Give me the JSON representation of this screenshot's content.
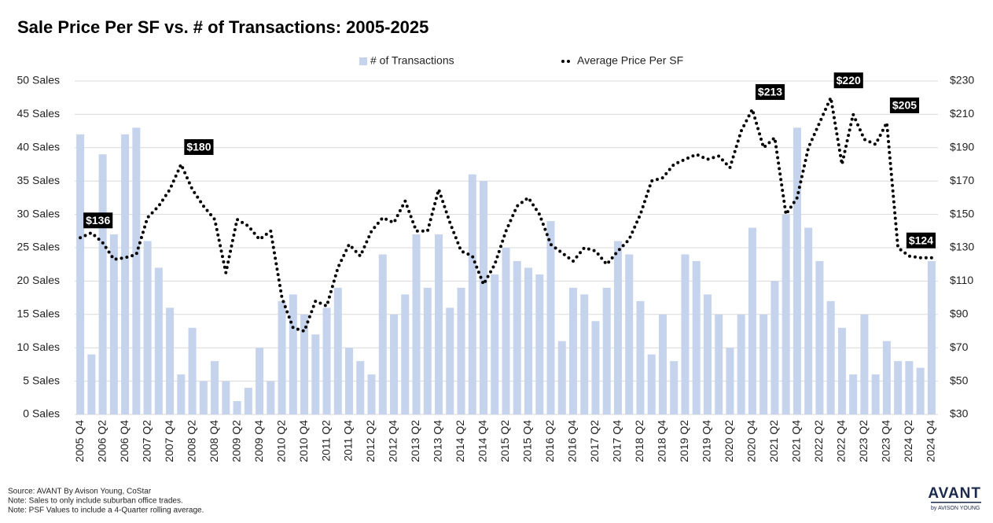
{
  "chart_data": {
    "type": "bar_line",
    "title": "Sale Price Per SF vs. # of Transactions: 2005-2025",
    "categories": [
      "2005 Q4",
      null,
      "2006 Q2",
      null,
      "2006 Q4",
      null,
      "2007 Q2",
      null,
      "2007 Q4",
      null,
      "2008 Q2",
      null,
      "2008 Q4",
      null,
      "2009 Q2",
      null,
      "2009 Q4",
      null,
      "2010 Q2",
      null,
      "2010 Q4",
      null,
      "2011 Q2",
      null,
      "2011 Q4",
      null,
      "2012 Q2",
      null,
      "2012 Q4",
      null,
      "2013 Q2",
      null,
      "2013 Q4",
      null,
      "2014 Q2",
      null,
      "2014 Q4",
      null,
      "2015 Q2",
      null,
      "2015 Q4",
      null,
      "2016 Q2",
      null,
      "2016 Q4",
      null,
      "2017 Q2",
      null,
      "2017 Q4",
      null,
      "2018 Q2",
      null,
      "2018 Q4",
      null,
      "2019 Q2",
      null,
      "2019 Q4",
      null,
      "2020 Q2",
      null,
      "2020 Q4",
      null,
      "2021 Q2",
      null,
      "2021 Q4",
      null,
      "2022 Q2",
      null,
      "2022 Q4",
      null,
      "2023 Q2",
      null,
      "2023 Q4",
      null,
      "2024 Q2",
      null,
      "2024 Q4"
    ],
    "series": [
      {
        "name": "# of Transactions",
        "color": "#c5d3ec",
        "kind": "bar",
        "values": [
          42,
          9,
          39,
          27,
          42,
          43,
          26,
          22,
          16,
          6,
          13,
          5,
          8,
          5,
          2,
          4,
          10,
          5,
          17,
          18,
          15,
          12,
          16,
          19,
          10,
          8,
          6,
          24,
          15,
          18,
          27,
          19,
          27,
          16,
          19,
          36,
          35,
          21,
          25,
          23,
          22,
          21,
          29,
          11,
          19,
          18,
          14,
          19,
          26,
          24,
          17,
          9,
          15,
          8,
          24,
          23,
          18,
          15,
          10,
          15,
          28,
          15,
          20,
          30,
          43,
          28,
          23,
          17,
          13,
          6,
          15,
          6,
          11,
          8,
          8,
          7,
          23
        ]
      },
      {
        "name": "Average Price Per SF",
        "color": "#000000",
        "kind": "line",
        "axis": "y2",
        "values": [
          136,
          139,
          133,
          123,
          124,
          126,
          148,
          155,
          165,
          180,
          165,
          155,
          147,
          115,
          147,
          143,
          135,
          140,
          100,
          82,
          80,
          98,
          95,
          118,
          132,
          125,
          140,
          148,
          145,
          158,
          140,
          140,
          165,
          145,
          128,
          125,
          108,
          120,
          140,
          155,
          160,
          150,
          132,
          127,
          122,
          130,
          128,
          120,
          128,
          135,
          150,
          170,
          172,
          180,
          183,
          186,
          183,
          185,
          178,
          200,
          213,
          190,
          196,
          150,
          160,
          190,
          205,
          220,
          180,
          210,
          195,
          192,
          205,
          130,
          125,
          124,
          124
        ],
        "value_labels": [
          "$136",
          null,
          null,
          null,
          null,
          null,
          null,
          null,
          null,
          "$180",
          null,
          null,
          null,
          null,
          null,
          null,
          null,
          null,
          null,
          null,
          null,
          null,
          null,
          null,
          null,
          null,
          null,
          null,
          null,
          null,
          null,
          null,
          null,
          null,
          null,
          null,
          null,
          null,
          null,
          null,
          null,
          null,
          null,
          null,
          null,
          null,
          null,
          null,
          null,
          null,
          null,
          null,
          null,
          null,
          null,
          null,
          null,
          null,
          null,
          null,
          "$213",
          null,
          null,
          null,
          null,
          null,
          null,
          "$220",
          null,
          null,
          null,
          null,
          "$205",
          null,
          null,
          null,
          "$124"
        ]
      }
    ],
    "ylim": [
      0,
      50
    ],
    "yticks": [
      {
        "value": 0,
        "label": "0 Sales"
      },
      {
        "value": 5,
        "label": "5 Sales"
      },
      {
        "value": 10,
        "label": "10 Sales"
      },
      {
        "value": 15,
        "label": "15 Sales"
      },
      {
        "value": 20,
        "label": "20 Sales"
      },
      {
        "value": 25,
        "label": "25 Sales"
      },
      {
        "value": 30,
        "label": "30 Sales"
      },
      {
        "value": 35,
        "label": "35 Sales"
      },
      {
        "value": 40,
        "label": "40 Sales"
      },
      {
        "value": 45,
        "label": "45 Sales"
      },
      {
        "value": 50,
        "label": "50 Sales"
      }
    ],
    "y2lim": [
      30,
      230
    ],
    "y2ticks": [
      {
        "value": 30,
        "label": "$30"
      },
      {
        "value": 50,
        "label": "$50"
      },
      {
        "value": 70,
        "label": "$70"
      },
      {
        "value": 90,
        "label": "$90"
      },
      {
        "value": 110,
        "label": "$110"
      },
      {
        "value": 130,
        "label": "$130"
      },
      {
        "value": 150,
        "label": "$150"
      },
      {
        "value": 170,
        "label": "$170"
      },
      {
        "value": 190,
        "label": "$190"
      },
      {
        "value": 210,
        "label": "$210"
      },
      {
        "value": 230,
        "label": "$230"
      }
    ],
    "grid": true,
    "legend": "top"
  },
  "footer": {
    "notes": [
      "Source: AVANT By Avison Young, CoStar",
      "Note: Sales to only include suburban office trades.",
      "Note: PSF Values to include a 4-Quarter rolling average."
    ]
  },
  "logo": {
    "name": "AVANT",
    "tagline": "by AVISON YOUNG"
  }
}
